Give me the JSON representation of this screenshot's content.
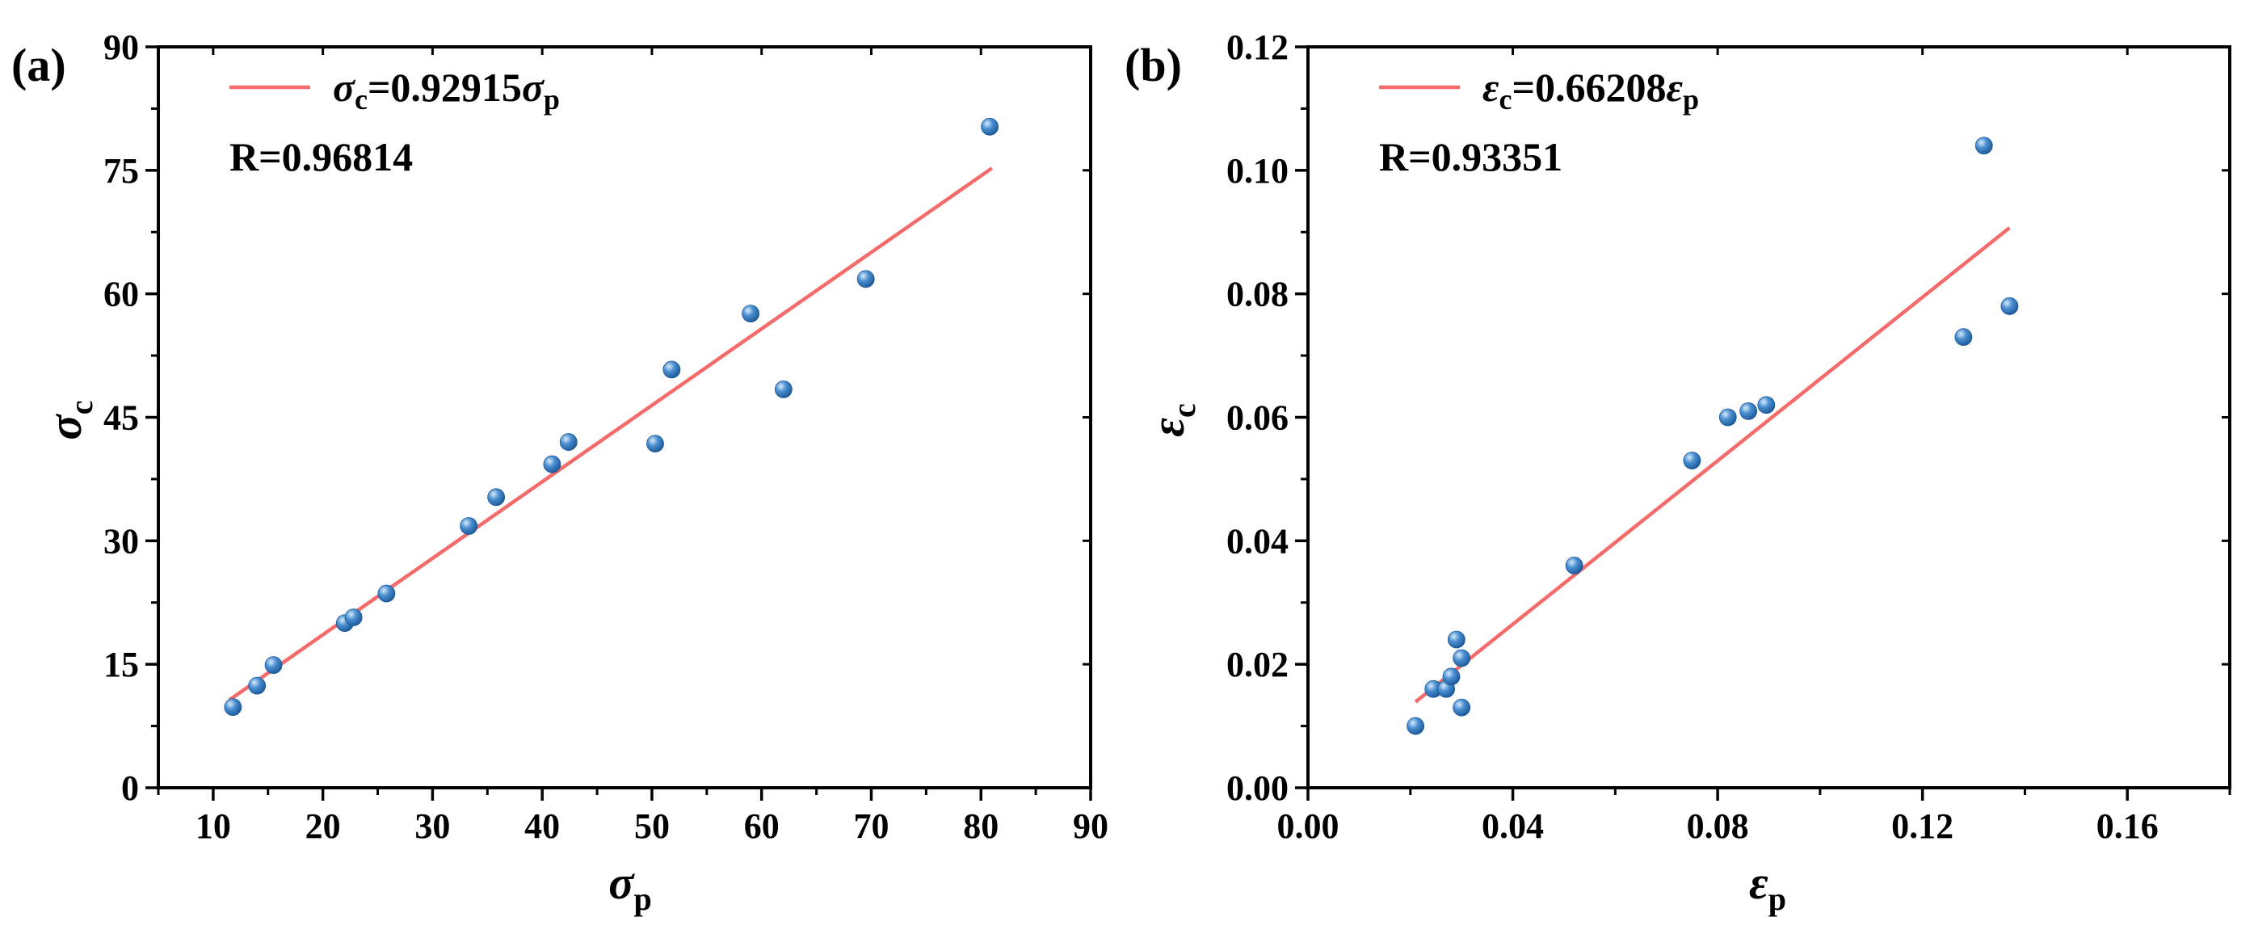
{
  "colors": {
    "fit_line": "#f46b6b",
    "point_fill": "#4a8fd1",
    "point_dark": "#1f5a9a",
    "point_highlight": "#d7ebfb",
    "axis": "#000000"
  },
  "chart_data": [
    {
      "id": "a",
      "type": "scatter",
      "panel_label": "(a)",
      "xlabel": {
        "symbol": "σ",
        "sub": "p"
      },
      "ylabel": {
        "symbol": "σ",
        "sub": "c"
      },
      "xlim": [
        5,
        90
      ],
      "ylim": [
        0,
        90
      ],
      "xticks": [
        10,
        20,
        30,
        40,
        50,
        60,
        70,
        80,
        90
      ],
      "yticks": [
        0,
        15,
        30,
        45,
        60,
        75,
        90
      ],
      "tick_decimals": 0,
      "legend": {
        "line_label": {
          "lhs_symbol": "σ",
          "lhs_sub": "c",
          "equals": "=0.92915",
          "rhs_symbol": "σ",
          "rhs_sub": "p"
        },
        "r_text": "R=0.96814",
        "placement": "top-left"
      },
      "fit": {
        "slope": 0.92915,
        "x_range": [
          11.5,
          81
        ]
      },
      "points": [
        {
          "x": 11.8,
          "y": 9.8
        },
        {
          "x": 14.0,
          "y": 12.4
        },
        {
          "x": 15.5,
          "y": 14.9
        },
        {
          "x": 22.0,
          "y": 20.0
        },
        {
          "x": 22.8,
          "y": 20.7
        },
        {
          "x": 25.8,
          "y": 23.6
        },
        {
          "x": 33.3,
          "y": 31.8
        },
        {
          "x": 35.8,
          "y": 35.3
        },
        {
          "x": 40.9,
          "y": 39.3
        },
        {
          "x": 42.4,
          "y": 42.0
        },
        {
          "x": 50.3,
          "y": 41.8
        },
        {
          "x": 51.8,
          "y": 50.8
        },
        {
          "x": 59.0,
          "y": 57.6
        },
        {
          "x": 62.0,
          "y": 48.4
        },
        {
          "x": 69.5,
          "y": 61.8
        },
        {
          "x": 80.8,
          "y": 80.3
        }
      ]
    },
    {
      "id": "b",
      "type": "scatter",
      "panel_label": "(b)",
      "xlabel": {
        "symbol": "ε",
        "sub": "p"
      },
      "ylabel": {
        "symbol": "ε",
        "sub": "c"
      },
      "xlim": [
        0.0,
        0.18
      ],
      "ylim": [
        0.0,
        0.12
      ],
      "xticks": [
        0.0,
        0.04,
        0.08,
        0.12,
        0.16
      ],
      "yticks": [
        0.0,
        0.02,
        0.04,
        0.06,
        0.08,
        0.1,
        0.12
      ],
      "xtick_decimals": 2,
      "ytick_decimals": 2,
      "legend": {
        "line_label": {
          "lhs_symbol": "ε",
          "lhs_sub": "c",
          "equals": "=0.66208",
          "rhs_symbol": "ε",
          "rhs_sub": "p"
        },
        "r_text": "R=0.93351",
        "placement": "top-left"
      },
      "fit": {
        "slope": 0.66208,
        "x_range": [
          0.021,
          0.137
        ]
      },
      "points": [
        {
          "x": 0.021,
          "y": 0.01
        },
        {
          "x": 0.0245,
          "y": 0.016
        },
        {
          "x": 0.027,
          "y": 0.016
        },
        {
          "x": 0.028,
          "y": 0.018
        },
        {
          "x": 0.029,
          "y": 0.024
        },
        {
          "x": 0.03,
          "y": 0.021
        },
        {
          "x": 0.03,
          "y": 0.013
        },
        {
          "x": 0.052,
          "y": 0.036
        },
        {
          "x": 0.075,
          "y": 0.053
        },
        {
          "x": 0.082,
          "y": 0.06
        },
        {
          "x": 0.086,
          "y": 0.061
        },
        {
          "x": 0.0895,
          "y": 0.062
        },
        {
          "x": 0.128,
          "y": 0.073
        },
        {
          "x": 0.132,
          "y": 0.104
        },
        {
          "x": 0.137,
          "y": 0.078
        }
      ]
    }
  ]
}
